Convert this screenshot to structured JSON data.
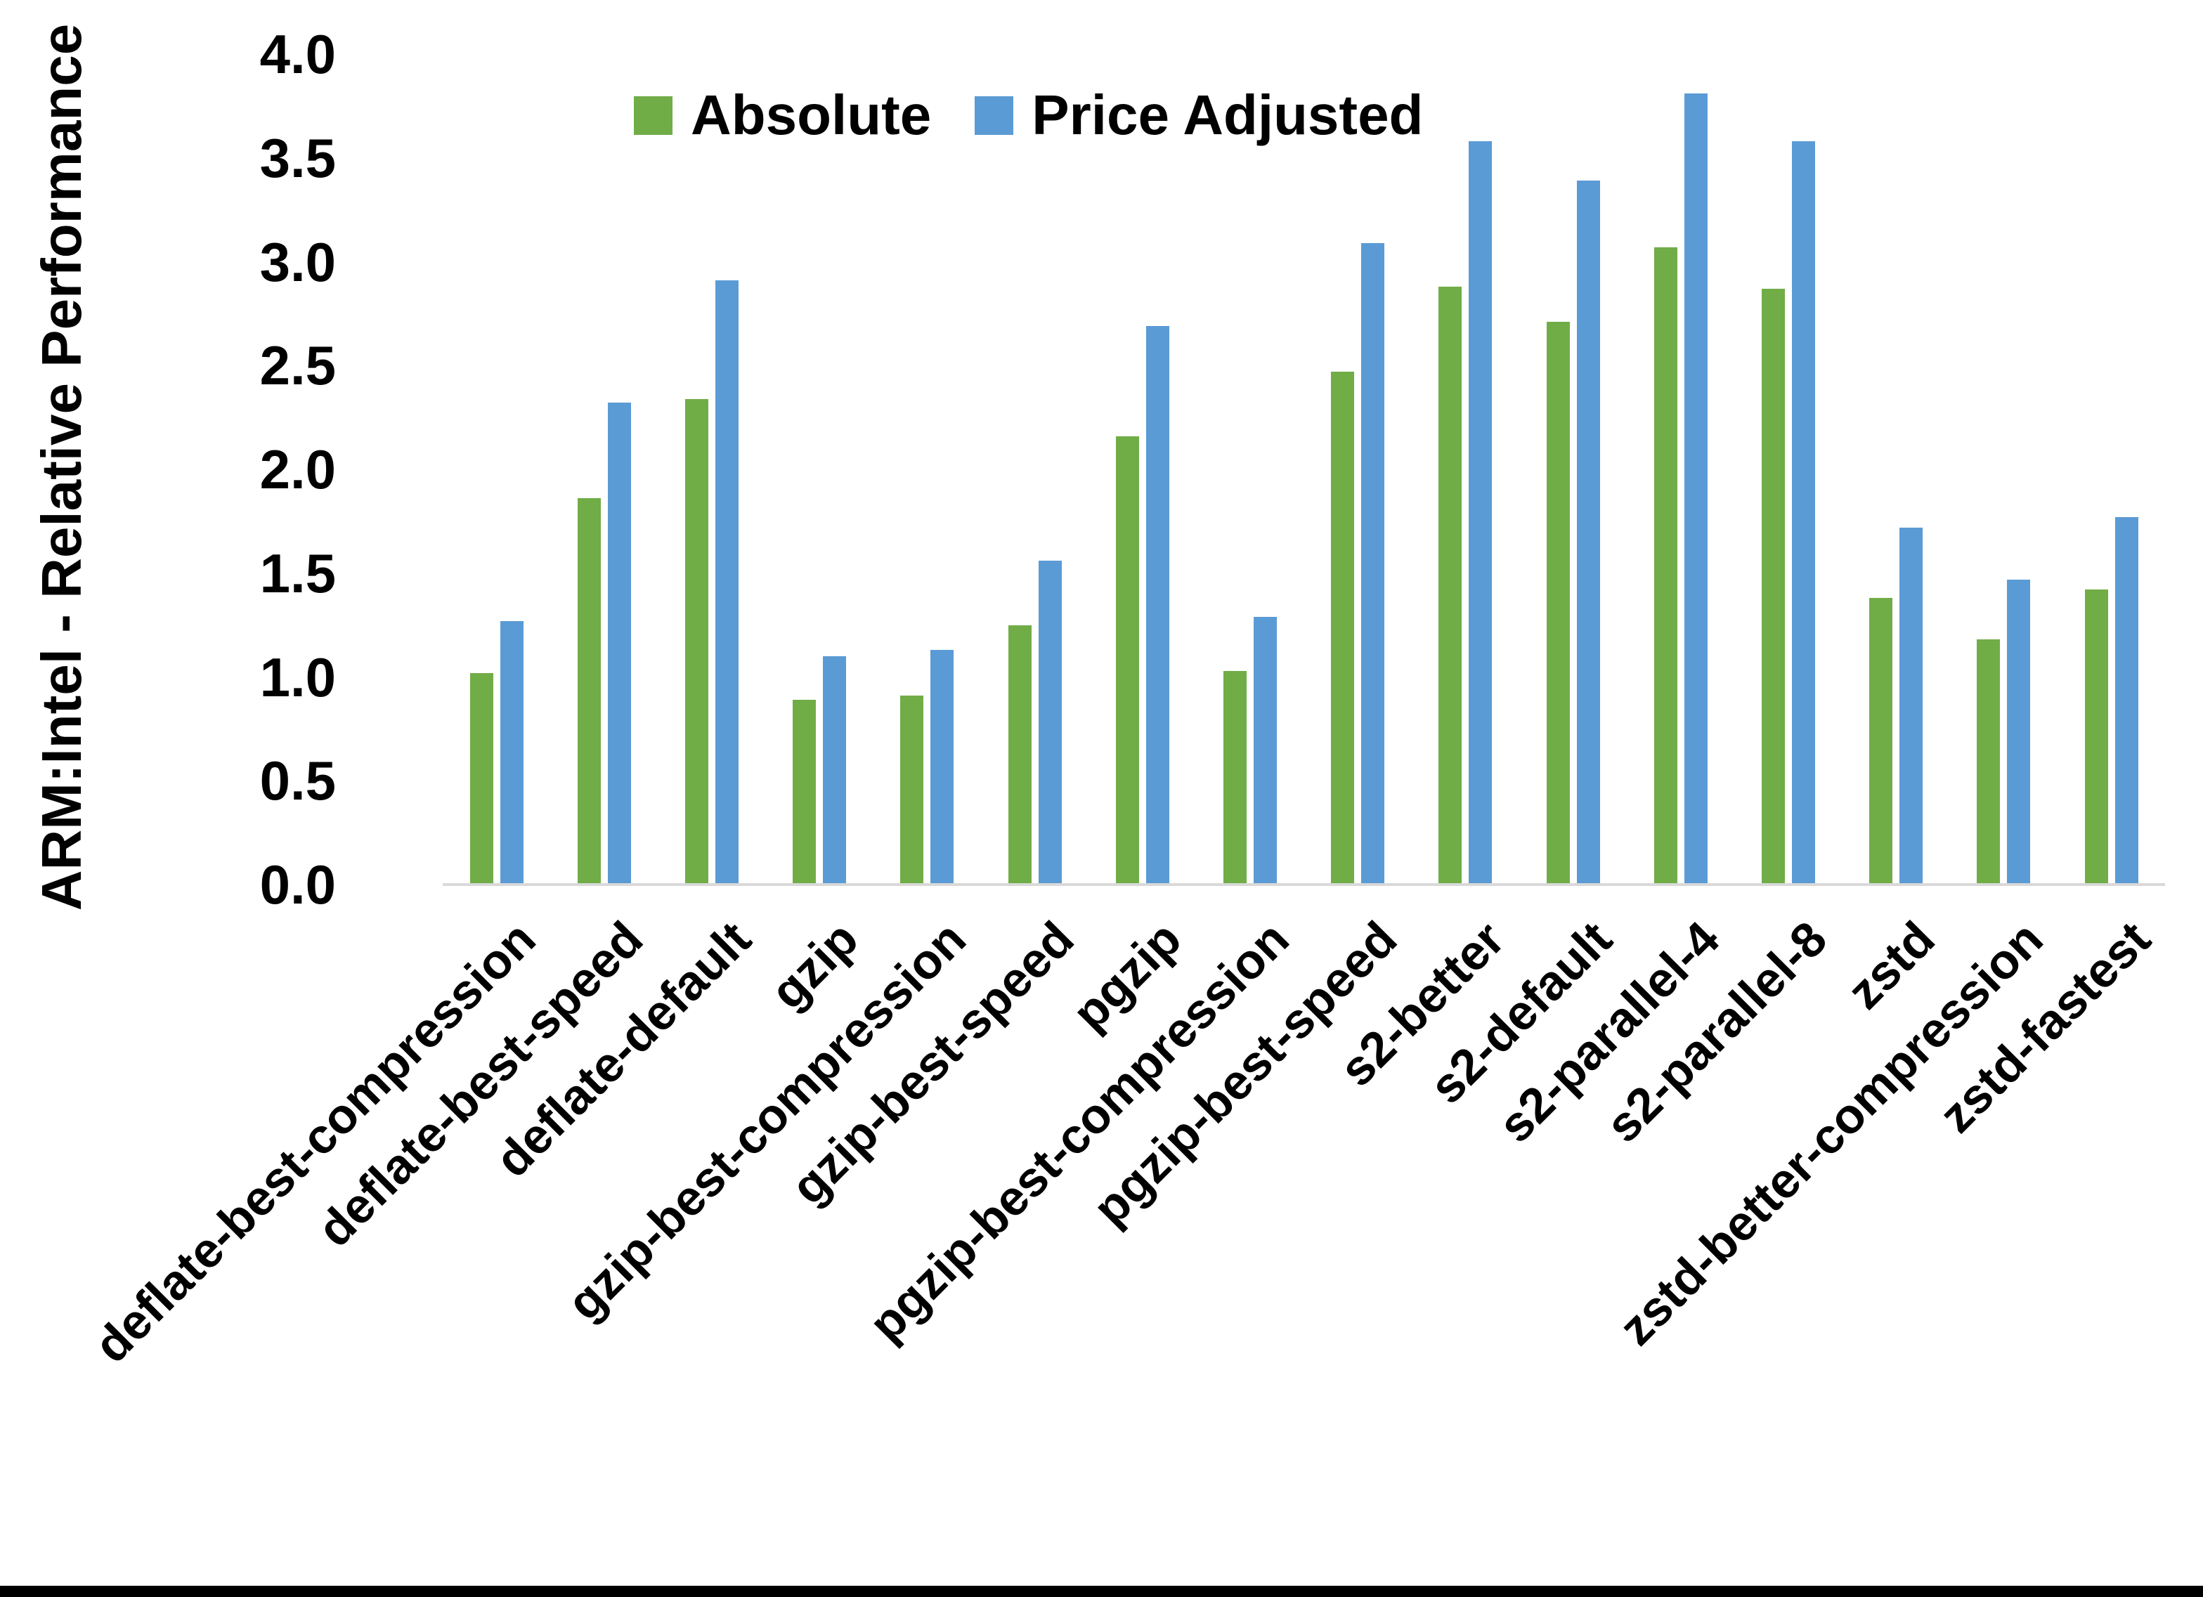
{
  "chart_data": {
    "type": "bar",
    "title": "",
    "xlabel": "",
    "ylabel": "ARM:Intel - Relative Performance",
    "ylim": [
      0.0,
      4.0
    ],
    "ytick_step": 0.5,
    "ytick_label_format": "one_decimal",
    "grid": false,
    "legend_position": "top-center",
    "categories": [
      "deflate-best-compression",
      "deflate-best-speed",
      "deflate-default",
      "gzip",
      "gzip-best-compression",
      "gzip-best-speed",
      "pgzip",
      "pgzip-best-compression",
      "pgzip-best-speed",
      "s2-better",
      "s2-default",
      "s2-parallel-4",
      "s2-parallel-8",
      "zstd",
      "zstd-better-compression",
      "zstd-fastest"
    ],
    "series": [
      {
        "name": "Absolute",
        "color": "#70AD47",
        "values": [
          1.02,
          1.86,
          2.34,
          0.89,
          0.91,
          1.25,
          2.16,
          1.03,
          2.47,
          2.88,
          2.71,
          3.07,
          2.87,
          1.38,
          1.18,
          1.42
        ]
      },
      {
        "name": "Price Adjusted",
        "color": "#5B9BD5",
        "values": [
          1.27,
          2.32,
          2.91,
          1.1,
          1.13,
          1.56,
          2.69,
          1.29,
          3.09,
          3.58,
          3.39,
          3.81,
          3.58,
          1.72,
          1.47,
          1.77
        ]
      }
    ]
  },
  "colors": {
    "background": "#FFFFFF",
    "axis_line": "#D9D9D9",
    "text": "#000000",
    "bottom_border": "#000000"
  }
}
